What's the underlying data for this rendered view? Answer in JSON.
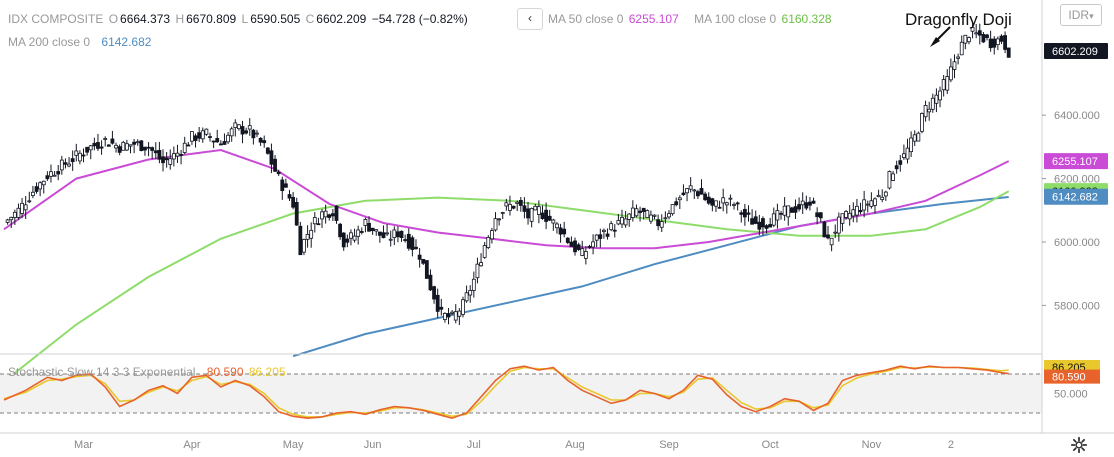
{
  "legend": {
    "symbol": "IDX COMPOSITE",
    "open_label": "O",
    "open": "6664.373",
    "high_label": "H",
    "high": "6670.809",
    "low_label": "L",
    "low": "6590.505",
    "close_label": "C",
    "close": "6602.209",
    "change": "−54.728 (−0.82%)",
    "collapse_icon": "chevron-left-icon",
    "ma50_label": "MA 50 close 0",
    "ma50_value": "6255.107",
    "ma100_label": "MA 100 close 0",
    "ma100_value": "6160.328",
    "ma200_label": "MA 200 close 0",
    "ma200_value": "6142.682"
  },
  "annotation": "Dragonfly Doji",
  "currency": "IDR",
  "stoch_legend": {
    "label": "Stochastic Slow 14 3 3 Exponential",
    "k": "80.590",
    "d": "86.205"
  },
  "colors": {
    "ma50": "#c94bd6",
    "ma100": "#8edc6a",
    "ma200": "#4e8cc2",
    "stoch_k": "#e8622c",
    "stoch_d": "#e8c82c",
    "last_price_bg": "#131722",
    "candle": "#131722"
  },
  "chart_data": [
    {
      "type": "candlestick",
      "title": "IDX COMPOSITE",
      "x_tick_labels": [
        "Mar",
        "Apr",
        "May",
        "Jun",
        "Jul",
        "Aug",
        "Sep",
        "Oct",
        "Nov",
        "2"
      ],
      "y_tick_labels": [
        "5800.000",
        "6000.000",
        "6200.000",
        "6400.000"
      ],
      "ylim": [
        5650,
        6700
      ],
      "grid": false,
      "last_price": 6602.209,
      "price_labels": [
        "6602.209",
        "6255.107",
        "6160.328",
        "6142.682"
      ],
      "close_path": [
        [
          0,
          6060
        ],
        [
          4,
          6100
        ],
        [
          8,
          6160
        ],
        [
          12,
          6210
        ],
        [
          16,
          6240
        ],
        [
          20,
          6270
        ],
        [
          24,
          6300
        ],
        [
          28,
          6320
        ],
        [
          32,
          6300
        ],
        [
          36,
          6310
        ],
        [
          40,
          6300
        ],
        [
          44,
          6250
        ],
        [
          48,
          6280
        ],
        [
          52,
          6330
        ],
        [
          56,
          6340
        ],
        [
          60,
          6310
        ],
        [
          64,
          6360
        ],
        [
          68,
          6350
        ],
        [
          72,
          6300
        ],
        [
          76,
          6200
        ],
        [
          80,
          6120
        ],
        [
          82,
          5980
        ],
        [
          85,
          6050
        ],
        [
          88,
          6090
        ],
        [
          91,
          6100
        ],
        [
          94,
          6000
        ],
        [
          97,
          6020
        ],
        [
          100,
          6060
        ],
        [
          103,
          6030
        ],
        [
          106,
          6010
        ],
        [
          109,
          6030
        ],
        [
          112,
          6000
        ],
        [
          115,
          5960
        ],
        [
          118,
          5860
        ],
        [
          121,
          5770
        ],
        [
          124,
          5760
        ],
        [
          127,
          5800
        ],
        [
          130,
          5880
        ],
        [
          133,
          5990
        ],
        [
          136,
          6080
        ],
        [
          139,
          6110
        ],
        [
          142,
          6120
        ],
        [
          145,
          6080
        ],
        [
          148,
          6100
        ],
        [
          151,
          6070
        ],
        [
          154,
          6040
        ],
        [
          157,
          5990
        ],
        [
          160,
          5960
        ],
        [
          163,
          6000
        ],
        [
          166,
          6030
        ],
        [
          169,
          6050
        ],
        [
          172,
          6070
        ],
        [
          175,
          6100
        ],
        [
          178,
          6080
        ],
        [
          181,
          6060
        ],
        [
          184,
          6100
        ],
        [
          187,
          6140
        ],
        [
          190,
          6170
        ],
        [
          193,
          6150
        ],
        [
          196,
          6110
        ],
        [
          199,
          6130
        ],
        [
          202,
          6120
        ],
        [
          205,
          6080
        ],
        [
          208,
          6060
        ],
        [
          211,
          6060
        ],
        [
          214,
          6080
        ],
        [
          217,
          6100
        ],
        [
          220,
          6110
        ],
        [
          223,
          6130
        ],
        [
          226,
          6060
        ],
        [
          228,
          6000
        ],
        [
          231,
          6060
        ],
        [
          234,
          6090
        ],
        [
          237,
          6110
        ],
        [
          240,
          6130
        ],
        [
          243,
          6150
        ],
        [
          246,
          6230
        ],
        [
          249,
          6270
        ],
        [
          252,
          6330
        ],
        [
          255,
          6420
        ],
        [
          258,
          6460
        ],
        [
          261,
          6510
        ],
        [
          264,
          6600
        ],
        [
          267,
          6660
        ],
        [
          270,
          6650
        ],
        [
          273,
          6630
        ],
        [
          276,
          6640
        ],
        [
          278,
          6602
        ]
      ],
      "ma50_path": [
        [
          0,
          6040
        ],
        [
          20,
          6200
        ],
        [
          40,
          6260
        ],
        [
          60,
          6290
        ],
        [
          75,
          6230
        ],
        [
          90,
          6120
        ],
        [
          105,
          6060
        ],
        [
          120,
          6030
        ],
        [
          135,
          6010
        ],
        [
          150,
          5990
        ],
        [
          165,
          5980
        ],
        [
          180,
          5980
        ],
        [
          195,
          6000
        ],
        [
          210,
          6030
        ],
        [
          225,
          6060
        ],
        [
          240,
          6090
        ],
        [
          255,
          6130
        ],
        [
          270,
          6210
        ],
        [
          278,
          6255
        ]
      ],
      "ma100_path": [
        [
          0,
          5560
        ],
        [
          20,
          5740
        ],
        [
          40,
          5890
        ],
        [
          60,
          6010
        ],
        [
          80,
          6090
        ],
        [
          100,
          6130
        ],
        [
          120,
          6140
        ],
        [
          140,
          6130
        ],
        [
          160,
          6100
        ],
        [
          180,
          6070
        ],
        [
          200,
          6040
        ],
        [
          220,
          6020
        ],
        [
          240,
          6020
        ],
        [
          255,
          6040
        ],
        [
          270,
          6110
        ],
        [
          278,
          6160
        ]
      ],
      "ma200_path": [
        [
          80,
          5640
        ],
        [
          100,
          5710
        ],
        [
          120,
          5760
        ],
        [
          140,
          5810
        ],
        [
          160,
          5860
        ],
        [
          180,
          5930
        ],
        [
          200,
          5990
        ],
        [
          220,
          6050
        ],
        [
          240,
          6090
        ],
        [
          260,
          6120
        ],
        [
          278,
          6142
        ]
      ]
    },
    {
      "type": "line",
      "title": "Stochastic Slow 14 3 3 Exponential",
      "y_tick_labels": [
        "50.000"
      ],
      "ylim": [
        0,
        100
      ],
      "overbought": 80,
      "oversold": 20,
      "series": [
        {
          "name": "K",
          "values": [
            [
              0,
              40
            ],
            [
              6,
              55
            ],
            [
              12,
              75
            ],
            [
              16,
              70
            ],
            [
              20,
              78
            ],
            [
              24,
              80
            ],
            [
              28,
              60
            ],
            [
              32,
              30
            ],
            [
              36,
              40
            ],
            [
              40,
              55
            ],
            [
              44,
              62
            ],
            [
              48,
              50
            ],
            [
              52,
              75
            ],
            [
              56,
              78
            ],
            [
              60,
              60
            ],
            [
              64,
              70
            ],
            [
              68,
              62
            ],
            [
              72,
              45
            ],
            [
              76,
              22
            ],
            [
              80,
              15
            ],
            [
              84,
              12
            ],
            [
              88,
              14
            ],
            [
              92,
              20
            ],
            [
              96,
              22
            ],
            [
              100,
              18
            ],
            [
              104,
              25
            ],
            [
              108,
              30
            ],
            [
              112,
              28
            ],
            [
              116,
              24
            ],
            [
              120,
              18
            ],
            [
              124,
              12
            ],
            [
              128,
              20
            ],
            [
              132,
              45
            ],
            [
              136,
              70
            ],
            [
              140,
              88
            ],
            [
              144,
              92
            ],
            [
              148,
              86
            ],
            [
              152,
              90
            ],
            [
              156,
              70
            ],
            [
              160,
              55
            ],
            [
              164,
              45
            ],
            [
              168,
              35
            ],
            [
              172,
              40
            ],
            [
              176,
              55
            ],
            [
              180,
              50
            ],
            [
              184,
              42
            ],
            [
              188,
              55
            ],
            [
              192,
              78
            ],
            [
              196,
              72
            ],
            [
              200,
              48
            ],
            [
              204,
              30
            ],
            [
              208,
              22
            ],
            [
              212,
              30
            ],
            [
              216,
              42
            ],
            [
              220,
              38
            ],
            [
              224,
              24
            ],
            [
              228,
              35
            ],
            [
              232,
              70
            ],
            [
              236,
              78
            ],
            [
              240,
              82
            ],
            [
              244,
              86
            ],
            [
              248,
              92
            ],
            [
              252,
              88
            ],
            [
              256,
              92
            ],
            [
              260,
              90
            ],
            [
              264,
              90
            ],
            [
              268,
              88
            ],
            [
              272,
              86
            ],
            [
              276,
              82
            ],
            [
              278,
              80.59
            ]
          ]
        },
        {
          "name": "D",
          "values": [
            [
              0,
              42
            ],
            [
              6,
              52
            ],
            [
              12,
              70
            ],
            [
              16,
              72
            ],
            [
              20,
              76
            ],
            [
              24,
              78
            ],
            [
              28,
              65
            ],
            [
              32,
              38
            ],
            [
              36,
              40
            ],
            [
              40,
              52
            ],
            [
              44,
              60
            ],
            [
              48,
              54
            ],
            [
              52,
              70
            ],
            [
              56,
              76
            ],
            [
              60,
              64
            ],
            [
              64,
              68
            ],
            [
              68,
              64
            ],
            [
              72,
              50
            ],
            [
              76,
              28
            ],
            [
              80,
              18
            ],
            [
              84,
              14
            ],
            [
              88,
              14
            ],
            [
              92,
              18
            ],
            [
              96,
              21
            ],
            [
              100,
              20
            ],
            [
              104,
              23
            ],
            [
              108,
              28
            ],
            [
              112,
              28
            ],
            [
              116,
              25
            ],
            [
              120,
              20
            ],
            [
              124,
              15
            ],
            [
              128,
              18
            ],
            [
              132,
              38
            ],
            [
              136,
              62
            ],
            [
              140,
              84
            ],
            [
              144,
              90
            ],
            [
              148,
              88
            ],
            [
              152,
              88
            ],
            [
              156,
              74
            ],
            [
              160,
              60
            ],
            [
              164,
              50
            ],
            [
              168,
              40
            ],
            [
              172,
              40
            ],
            [
              176,
              50
            ],
            [
              180,
              50
            ],
            [
              184,
              45
            ],
            [
              188,
              52
            ],
            [
              192,
              72
            ],
            [
              196,
              74
            ],
            [
              200,
              55
            ],
            [
              204,
              36
            ],
            [
              208,
              26
            ],
            [
              212,
              28
            ],
            [
              216,
              38
            ],
            [
              220,
              38
            ],
            [
              224,
              28
            ],
            [
              228,
              32
            ],
            [
              232,
              62
            ],
            [
              236,
              74
            ],
            [
              240,
              80
            ],
            [
              244,
              84
            ],
            [
              248,
              90
            ],
            [
              252,
              89
            ],
            [
              256,
              91
            ],
            [
              260,
              90
            ],
            [
              264,
              90
            ],
            [
              268,
              89
            ],
            [
              272,
              87
            ],
            [
              276,
              85
            ],
            [
              278,
              86.205
            ]
          ]
        }
      ],
      "price_labels": [
        "86.205",
        "80.590"
      ]
    }
  ]
}
